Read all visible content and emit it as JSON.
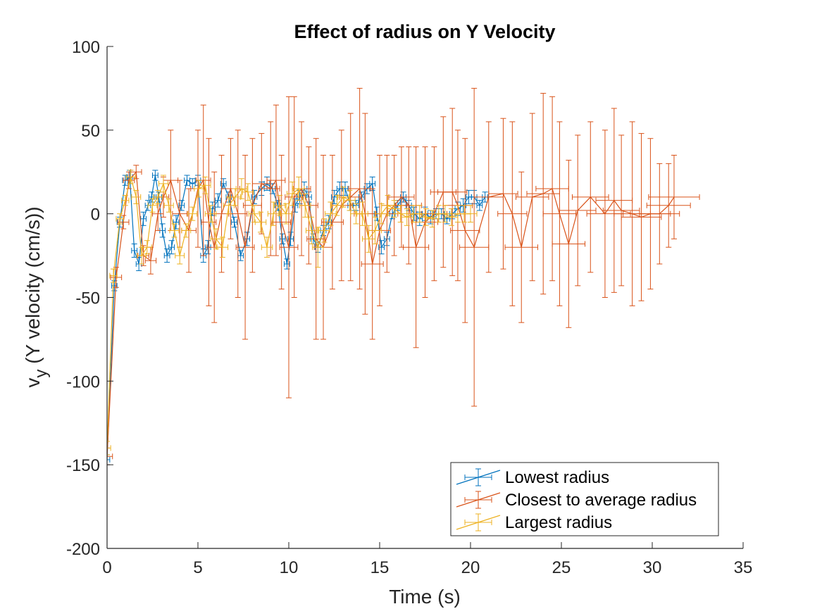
{
  "chart_data": {
    "type": "line",
    "title": "Effect of radius on  Y Velocity",
    "xlabel": "Time (s)",
    "ylabel": {
      "main": "v",
      "sub": "y",
      "rest": " (Y velocity (cm/s))"
    },
    "xlim": [
      0,
      35
    ],
    "ylim": [
      -200,
      100
    ],
    "xticks": [
      0,
      5,
      10,
      15,
      20,
      25,
      30,
      35
    ],
    "yticks": [
      -200,
      -150,
      -100,
      -50,
      0,
      50,
      100
    ],
    "grid": false,
    "legend_position": "bottom-right",
    "series": [
      {
        "name": "Lowest radius",
        "color": "#0072BD",
        "x": [
          0.0,
          0.4,
          0.7,
          1.0,
          1.25,
          1.5,
          1.75,
          2.0,
          2.25,
          2.45,
          2.65,
          2.85,
          3.05,
          3.3,
          3.55,
          3.8,
          4.1,
          4.4,
          4.7,
          5.0,
          5.3,
          5.55,
          5.8,
          6.1,
          6.4,
          6.7,
          7.0,
          7.35,
          7.7,
          8.1,
          8.5,
          8.8,
          9.1,
          9.4,
          9.65,
          9.9,
          10.1,
          10.35,
          10.6,
          10.85,
          11.1,
          11.35,
          11.6,
          11.9,
          12.2,
          12.5,
          12.8,
          13.1,
          13.4,
          13.7,
          14.0,
          14.3,
          14.6,
          14.85,
          15.1,
          15.4,
          15.7,
          16.0,
          16.3,
          16.6,
          16.9,
          17.2,
          17.5,
          17.8,
          18.1,
          18.4,
          18.7,
          19.0,
          19.3,
          19.6,
          19.9,
          20.2,
          20.5,
          20.8
        ],
        "y": [
          -147,
          -43,
          -5,
          20,
          22,
          -22,
          -30,
          -3,
          5,
          10,
          23,
          10,
          -10,
          -25,
          -20,
          -5,
          5,
          20,
          18,
          20,
          -25,
          -20,
          3,
          8,
          18,
          10,
          -5,
          -25,
          -15,
          10,
          15,
          18,
          15,
          5,
          -15,
          -30,
          -15,
          5,
          10,
          15,
          10,
          -15,
          -20,
          -10,
          -5,
          10,
          15,
          15,
          5,
          5,
          10,
          15,
          18,
          0,
          -20,
          -15,
          0,
          5,
          10,
          5,
          0,
          -3,
          0,
          -2,
          0,
          0,
          -3,
          0,
          3,
          5,
          10,
          10,
          5,
          10
        ],
        "xerr": [
          0.15,
          0.15,
          0.15,
          0.15,
          0.15,
          0.15,
          0.15,
          0.15,
          0.15,
          0.15,
          0.15,
          0.15,
          0.15,
          0.15,
          0.15,
          0.15,
          0.15,
          0.15,
          0.15,
          0.15,
          0.15,
          0.15,
          0.15,
          0.15,
          0.15,
          0.15,
          0.15,
          0.15,
          0.15,
          0.15,
          0.15,
          0.15,
          0.15,
          0.15,
          0.15,
          0.15,
          0.15,
          0.15,
          0.15,
          0.15,
          0.15,
          0.15,
          0.15,
          0.15,
          0.15,
          0.15,
          0.15,
          0.15,
          0.15,
          0.15,
          0.15,
          0.15,
          0.15,
          0.15,
          0.15,
          0.15,
          0.15,
          0.15,
          0.15,
          0.15,
          0.15,
          0.15,
          0.15,
          0.15,
          0.15,
          0.15,
          0.15,
          0.15,
          0.15,
          0.15,
          0.15,
          0.15,
          0.15,
          0.15
        ],
        "yerr": [
          3,
          3,
          3,
          3,
          4,
          4,
          4,
          4,
          3,
          3,
          3,
          3,
          4,
          4,
          4,
          4,
          3,
          3,
          3,
          3,
          4,
          4,
          4,
          4,
          3,
          3,
          3,
          3,
          4,
          4,
          4,
          4,
          3,
          3,
          3,
          3,
          4,
          4,
          4,
          4,
          3,
          3,
          3,
          3,
          4,
          4,
          4,
          4,
          3,
          3,
          3,
          3,
          4,
          4,
          4,
          4,
          3,
          3,
          3,
          3,
          4,
          4,
          4,
          4,
          3,
          3,
          3,
          3,
          4,
          4,
          4,
          4,
          3,
          3
        ]
      },
      {
        "name": "Closest to average radius",
        "color": "#D95319",
        "x": [
          0.0,
          0.5,
          0.9,
          1.2,
          1.6,
          2.0,
          2.4,
          2.8,
          3.1,
          3.5,
          4.0,
          4.5,
          5.0,
          5.3,
          5.6,
          5.9,
          6.3,
          6.8,
          7.2,
          7.6,
          8.0,
          8.5,
          9.0,
          9.3,
          9.6,
          10.0,
          10.3,
          10.7,
          11.1,
          11.5,
          11.9,
          12.4,
          12.9,
          13.4,
          13.9,
          14.2,
          14.6,
          15.0,
          15.4,
          15.8,
          16.2,
          16.6,
          17.0,
          17.5,
          18.0,
          18.5,
          19.0,
          19.3,
          19.7,
          20.2,
          21.0,
          21.8,
          22.3,
          22.8,
          23.4,
          24.0,
          24.5,
          24.9,
          25.4,
          25.9,
          26.6,
          27.4,
          27.9,
          28.3,
          28.9,
          29.4,
          29.9,
          30.4,
          30.9,
          31.2
        ],
        "y": [
          -145,
          -38,
          -5,
          20,
          25,
          -25,
          -28,
          0,
          10,
          20,
          0,
          -10,
          15,
          20,
          -5,
          -20,
          0,
          15,
          0,
          -20,
          5,
          18,
          15,
          20,
          -5,
          -20,
          10,
          15,
          5,
          -15,
          -20,
          -5,
          5,
          10,
          15,
          0,
          -30,
          -10,
          0,
          5,
          10,
          5,
          -20,
          -5,
          0,
          13,
          13,
          5,
          -10,
          -20,
          10,
          12,
          0,
          -20,
          10,
          12,
          15,
          0,
          -18,
          2,
          10,
          0,
          8,
          2,
          0,
          -2,
          0,
          0,
          5,
          10
        ],
        "xerr": [
          0.3,
          0.3,
          0.3,
          0.3,
          0.3,
          0.3,
          0.3,
          0.3,
          0.3,
          0.4,
          0.4,
          0.4,
          0.4,
          0.4,
          0.4,
          0.4,
          0.4,
          0.5,
          0.5,
          0.5,
          0.5,
          0.5,
          0.5,
          0.5,
          0.5,
          0.5,
          0.5,
          0.5,
          0.5,
          0.5,
          0.5,
          0.6,
          0.6,
          0.6,
          0.6,
          0.6,
          0.6,
          0.6,
          0.6,
          0.7,
          0.7,
          0.7,
          0.7,
          0.7,
          0.7,
          0.7,
          0.8,
          0.8,
          0.8,
          0.8,
          0.8,
          0.8,
          0.8,
          0.9,
          0.9,
          0.9,
          0.9,
          0.9,
          0.9,
          1.0,
          1.0,
          1.0,
          1.0,
          1.0,
          1.0,
          1.1,
          1.1,
          1.1,
          1.2,
          1.4
        ],
        "yerr": [
          5,
          6,
          4,
          5,
          4,
          6,
          8,
          10,
          12,
          30,
          20,
          25,
          35,
          45,
          50,
          45,
          35,
          30,
          50,
          55,
          40,
          30,
          40,
          45,
          40,
          90,
          60,
          40,
          35,
          60,
          55,
          40,
          45,
          50,
          60,
          60,
          45,
          45,
          35,
          30,
          30,
          35,
          60,
          45,
          40,
          45,
          50,
          45,
          55,
          95,
          45,
          45,
          55,
          45,
          50,
          60,
          55,
          55,
          50,
          45,
          45,
          50,
          55,
          45,
          55,
          50,
          45,
          30,
          25,
          25
        ]
      },
      {
        "name": "Largest radius",
        "color": "#EDB120",
        "x": [
          0.0,
          0.35,
          0.7,
          1.0,
          1.3,
          1.6,
          1.9,
          2.2,
          2.5,
          2.8,
          3.1,
          3.4,
          3.7,
          4.0,
          4.35,
          4.7,
          5.05,
          5.4,
          5.7,
          6.0,
          6.35,
          6.7,
          7.05,
          7.4,
          7.75,
          8.1,
          8.45,
          8.8,
          9.15,
          9.5,
          9.85,
          10.2,
          10.55,
          10.9,
          11.25,
          11.6,
          11.95,
          12.3,
          12.65,
          13.0,
          13.35,
          13.7,
          14.05,
          14.4,
          14.75,
          15.1,
          15.45,
          15.8,
          16.15,
          16.5,
          16.85,
          17.2,
          17.55,
          17.9,
          18.25,
          18.6,
          18.95,
          19.3,
          19.65,
          20.0
        ],
        "y": [
          -140,
          -37,
          -3,
          8,
          22,
          10,
          -25,
          -20,
          5,
          10,
          18,
          5,
          -10,
          -25,
          -10,
          0,
          15,
          17,
          0,
          -15,
          -20,
          5,
          10,
          15,
          13,
          0,
          -5,
          -20,
          0,
          5,
          0,
          12,
          15,
          5,
          -10,
          -20,
          -10,
          0,
          5,
          10,
          8,
          0,
          0,
          -15,
          -10,
          0,
          5,
          3,
          0,
          -2,
          0,
          0,
          -2,
          -3,
          0,
          0,
          -2,
          0,
          0,
          0
        ],
        "xerr": [
          0.2,
          0.2,
          0.2,
          0.2,
          0.25,
          0.25,
          0.25,
          0.25,
          0.25,
          0.25,
          0.25,
          0.25,
          0.25,
          0.25,
          0.25,
          0.25,
          0.25,
          0.3,
          0.3,
          0.3,
          0.3,
          0.3,
          0.3,
          0.3,
          0.3,
          0.3,
          0.3,
          0.3,
          0.3,
          0.3,
          0.3,
          0.3,
          0.3,
          0.3,
          0.3,
          0.3,
          0.3,
          0.3,
          0.3,
          0.3,
          0.3,
          0.3,
          0.3,
          0.35,
          0.35,
          0.35,
          0.35,
          0.35,
          0.35,
          0.35,
          0.35,
          0.35,
          0.35,
          0.35,
          0.35,
          0.35,
          0.35,
          0.35,
          0.35,
          0.35
        ],
        "yerr": [
          4,
          4,
          3,
          3,
          4,
          4,
          5,
          4,
          4,
          4,
          5,
          4,
          4,
          5,
          4,
          4,
          5,
          5,
          5,
          6,
          6,
          5,
          5,
          6,
          5,
          5,
          6,
          6,
          7,
          6,
          6,
          7,
          7,
          7,
          8,
          12,
          7,
          7,
          6,
          6,
          6,
          6,
          7,
          8,
          8,
          6,
          6,
          5,
          5,
          5,
          5,
          5,
          5,
          5,
          5,
          5,
          5,
          5,
          5,
          5
        ]
      }
    ]
  }
}
